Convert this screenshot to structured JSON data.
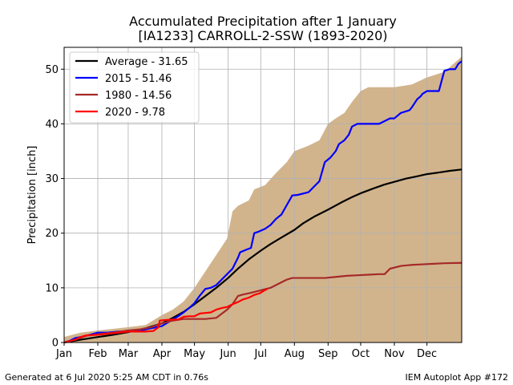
{
  "chart_data": {
    "type": "area",
    "title": "Accumulated Precipitation after 1 January",
    "subtitle": "[IA1233] CARROLL-2-SSW (1893-2020)",
    "xlabel": "",
    "ylabel": "Precipitation [inch]",
    "xlim": [
      0,
      366
    ],
    "ylim": [
      0,
      54
    ],
    "x_ticks": [
      {
        "label": "Jan",
        "day": 0
      },
      {
        "label": "Feb",
        "day": 31
      },
      {
        "label": "Mar",
        "day": 59
      },
      {
        "label": "Apr",
        "day": 90
      },
      {
        "label": "May",
        "day": 120
      },
      {
        "label": "Jun",
        "day": 151
      },
      {
        "label": "Jul",
        "day": 181
      },
      {
        "label": "Aug",
        "day": 212
      },
      {
        "label": "Sep",
        "day": 243
      },
      {
        "label": "Oct",
        "day": 273
      },
      {
        "label": "Nov",
        "day": 304
      },
      {
        "label": "Dec",
        "day": 334
      }
    ],
    "y_ticks": [
      0,
      10,
      20,
      30,
      40,
      50
    ],
    "grid": true,
    "legend_position": "top-left",
    "range_band": {
      "color": "#d2b48c",
      "max": [
        [
          0,
          1
        ],
        [
          15,
          1.8
        ],
        [
          31,
          2.2
        ],
        [
          45,
          2.5
        ],
        [
          59,
          2.8
        ],
        [
          75,
          3.2
        ],
        [
          90,
          5
        ],
        [
          100,
          6
        ],
        [
          110,
          7.5
        ],
        [
          120,
          10
        ],
        [
          130,
          13
        ],
        [
          140,
          16
        ],
        [
          150,
          19
        ],
        [
          155,
          24
        ],
        [
          160,
          25
        ],
        [
          170,
          26
        ],
        [
          175,
          28
        ],
        [
          185,
          28.8
        ],
        [
          195,
          31
        ],
        [
          205,
          33
        ],
        [
          212,
          35
        ],
        [
          225,
          36
        ],
        [
          235,
          37
        ],
        [
          243,
          40
        ],
        [
          250,
          41
        ],
        [
          258,
          42
        ],
        [
          265,
          44
        ],
        [
          273,
          46
        ],
        [
          280,
          46.7
        ],
        [
          300,
          46.7
        ],
        [
          304,
          46.7
        ],
        [
          320,
          47.2
        ],
        [
          334,
          48.5
        ],
        [
          350,
          49.5
        ],
        [
          366,
          52.3
        ]
      ],
      "min": [
        [
          0,
          0
        ],
        [
          31,
          0
        ],
        [
          59,
          0
        ],
        [
          90,
          0
        ],
        [
          120,
          0
        ],
        [
          151,
          0
        ],
        [
          181,
          0
        ],
        [
          212,
          0
        ],
        [
          243,
          0
        ],
        [
          273,
          0
        ],
        [
          304,
          0
        ],
        [
          334,
          0
        ],
        [
          366,
          0
        ]
      ]
    },
    "series": [
      {
        "name": "Average - 31.65",
        "color": "#000000",
        "x": [
          0,
          15,
          31,
          45,
          59,
          75,
          90,
          100,
          110,
          120,
          130,
          140,
          151,
          160,
          170,
          181,
          190,
          200,
          212,
          220,
          230,
          243,
          255,
          265,
          273,
          285,
          295,
          304,
          315,
          325,
          334,
          345,
          355,
          366
        ],
        "y": [
          0,
          0.5,
          1.0,
          1.4,
          1.9,
          2.6,
          3.5,
          4.5,
          5.6,
          7.0,
          8.5,
          10.0,
          11.8,
          13.5,
          15.2,
          16.8,
          18.0,
          19.2,
          20.6,
          21.8,
          23.0,
          24.3,
          25.6,
          26.6,
          27.3,
          28.2,
          28.9,
          29.4,
          30.0,
          30.4,
          30.8,
          31.1,
          31.4,
          31.65
        ]
      },
      {
        "name": "2015 - 51.46",
        "color": "#0000ff",
        "x": [
          0,
          5,
          10,
          20,
          31,
          40,
          50,
          60,
          70,
          80,
          90,
          95,
          100,
          105,
          110,
          115,
          120,
          125,
          130,
          135,
          140,
          145,
          150,
          155,
          160,
          162,
          168,
          172,
          175,
          178,
          185,
          190,
          195,
          200,
          210,
          215,
          225,
          230,
          235,
          240,
          245,
          250,
          253,
          258,
          262,
          265,
          270,
          280,
          290,
          300,
          304,
          310,
          318,
          320,
          325,
          328,
          330,
          334,
          340,
          345,
          350,
          355,
          360,
          363,
          366
        ],
        "y": [
          0,
          0.3,
          0.8,
          1.2,
          1.8,
          1.8,
          2.0,
          2.0,
          2.2,
          2.6,
          3.0,
          3.6,
          4.2,
          4.8,
          5.5,
          6.3,
          7.2,
          8.6,
          9.8,
          10.0,
          10.5,
          11.5,
          12.5,
          13.5,
          15.5,
          16.5,
          17.0,
          17.3,
          20,
          20.2,
          20.8,
          21.5,
          22.6,
          23.4,
          26.9,
          27.0,
          27.5,
          28.5,
          29.5,
          33.0,
          33.8,
          35.0,
          36.3,
          37.0,
          38.0,
          39.5,
          40.0,
          40.0,
          40.0,
          41.0,
          41.0,
          42.0,
          42.5,
          43.0,
          44.5,
          45.0,
          45.5,
          46.0,
          46.0,
          46.0,
          49.7,
          50.0,
          50.0,
          51.0,
          51.46
        ]
      },
      {
        "name": "1980 - 14.56",
        "color": "#a52a2a",
        "x": [
          0,
          10,
          20,
          31,
          45,
          59,
          70,
          80,
          90,
          100,
          110,
          120,
          130,
          140,
          150,
          155,
          160,
          165,
          170,
          180,
          190,
          200,
          205,
          210,
          220,
          230,
          240,
          250,
          260,
          270,
          280,
          290,
          295,
          300,
          310,
          320,
          330,
          340,
          350,
          360,
          366
        ],
        "y": [
          0,
          0.5,
          1.2,
          1.5,
          1.8,
          2.2,
          2.4,
          2.8,
          3.5,
          4.0,
          4.3,
          4.3,
          4.3,
          4.5,
          6.0,
          7.0,
          8.5,
          8.8,
          9.0,
          9.5,
          10.0,
          11.0,
          11.5,
          11.8,
          11.8,
          11.8,
          11.8,
          12.0,
          12.2,
          12.3,
          12.4,
          12.5,
          12.5,
          13.5,
          14.0,
          14.2,
          14.3,
          14.4,
          14.5,
          14.55,
          14.56
        ]
      },
      {
        "name": "2020 - 9.78",
        "color": "#ff0000",
        "x": [
          0,
          10,
          15,
          20,
          31,
          40,
          50,
          59,
          65,
          75,
          82,
          87,
          88,
          92,
          100,
          105,
          110,
          115,
          120,
          125,
          130,
          135,
          140,
          145,
          150,
          155,
          160,
          165,
          170,
          175,
          180,
          185,
          187
        ],
        "y": [
          0,
          0.5,
          1.0,
          1.3,
          1.4,
          1.6,
          1.8,
          2.0,
          2.0,
          2.0,
          2.1,
          2.8,
          4.0,
          4.1,
          4.2,
          4.2,
          4.7,
          4.8,
          4.8,
          5.3,
          5.4,
          5.5,
          6.0,
          6.3,
          6.5,
          7.0,
          7.4,
          7.9,
          8.2,
          8.7,
          9.0,
          9.6,
          9.78
        ]
      }
    ]
  },
  "footer": {
    "left": "Generated at 6 Jul 2020 5:25 AM CDT in 0.76s",
    "right": "IEM Autoplot App #172"
  }
}
